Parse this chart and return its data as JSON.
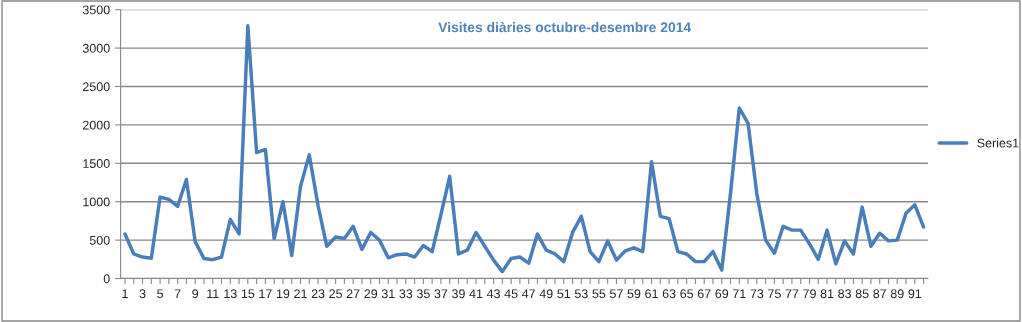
{
  "chart_data": {
    "type": "line",
    "title": "Visites diàries octubre-desembre 2014",
    "categories": [
      "1",
      null,
      "3",
      null,
      "5",
      null,
      "7",
      null,
      "9",
      null,
      "11",
      null,
      "13",
      null,
      "15",
      null,
      "17",
      null,
      "19",
      null,
      "21",
      null,
      "23",
      null,
      "25",
      null,
      "27",
      null,
      "29",
      null,
      "31",
      null,
      "33",
      null,
      "35",
      null,
      "37",
      null,
      "39",
      null,
      "41",
      null,
      "43",
      null,
      "45",
      null,
      "47",
      null,
      "49",
      null,
      "51",
      null,
      "53",
      null,
      "55",
      null,
      "57",
      null,
      "59",
      null,
      "61",
      null,
      "63",
      null,
      "65",
      null,
      "67",
      null,
      "69",
      null,
      "71",
      null,
      "73",
      null,
      "75",
      null,
      "77",
      null,
      "79",
      null,
      "81",
      null,
      "83",
      null,
      "85",
      null,
      "87",
      null,
      "89",
      null,
      "91",
      null
    ],
    "series": [
      {
        "name": "Series1",
        "color": "#4a7ebb",
        "values": [
          580,
          320,
          280,
          265,
          1060,
          1030,
          940,
          1290,
          480,
          260,
          245,
          280,
          770,
          580,
          3290,
          1640,
          1680,
          520,
          1000,
          300,
          1200,
          1610,
          950,
          420,
          540,
          520,
          680,
          380,
          600,
          500,
          270,
          310,
          320,
          280,
          430,
          350,
          830,
          1330,
          320,
          370,
          600,
          420,
          240,
          90,
          260,
          280,
          200,
          580,
          370,
          320,
          220,
          600,
          810,
          350,
          220,
          490,
          240,
          360,
          400,
          350,
          1520,
          810,
          780,
          350,
          320,
          220,
          220,
          350,
          110,
          1110,
          2220,
          2020,
          1100,
          500,
          330,
          680,
          630,
          630,
          450,
          250,
          630,
          190,
          490,
          320,
          930,
          420,
          590,
          490,
          500,
          850,
          960,
          670
        ]
      }
    ],
    "ylim": [
      0,
      3500
    ],
    "yticks": [
      0,
      500,
      1000,
      1500,
      2000,
      2500,
      3000,
      3500
    ],
    "grid": "y",
    "legend": "right",
    "line_style": "solid",
    "marker": "none"
  }
}
